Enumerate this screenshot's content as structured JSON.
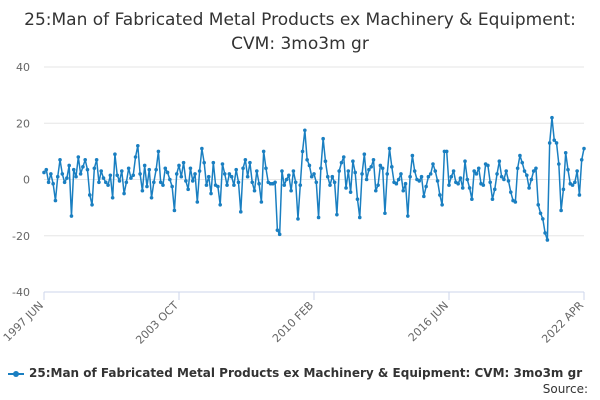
{
  "chart_data": {
    "type": "line",
    "title": "25:Man of Fabricated Metal Products ex Machinery & Equipment: CVM: 3mo3m gr",
    "xlabel": "",
    "ylabel": "",
    "x_tick_labels": [
      "1997 JUN",
      "2003 OCT",
      "2010 FEB",
      "2016 JUN",
      "2022 APR"
    ],
    "y_ticks": [
      40,
      20,
      0,
      -20,
      -40
    ],
    "ylim": [
      -40,
      40
    ],
    "xlim": [
      "1997 JUN",
      "2022 APR"
    ],
    "grid": "horizontal",
    "legend_position": "bottom-left",
    "color": "#1a7fc1",
    "series": [
      {
        "name": "25:Man of Fabricated Metal Products ex Machinery & Equipment: CVM: 3mo3m gr",
        "step": "3 months",
        "start": "1997 JUN",
        "values": [
          2.5,
          3.5,
          -1.0,
          2.0,
          -1.5,
          -7.5,
          1.0,
          7.0,
          2.0,
          -1.0,
          0.5,
          5.0,
          -13.0,
          3.5,
          1.0,
          8.0,
          2.0,
          4.5,
          7.0,
          3.5,
          -5.5,
          -9.0,
          4.0,
          7.0,
          -1.0,
          3.0,
          0.5,
          -1.0,
          -2.0,
          1.5,
          -6.5,
          9.0,
          1.5,
          -0.5,
          3.0,
          -5.0,
          -1.0,
          4.0,
          0.5,
          1.5,
          8.0,
          12.0,
          2.0,
          -4.0,
          5.0,
          -2.5,
          3.5,
          -6.5,
          -1.0,
          3.5,
          10.0,
          -1.0,
          -2.0,
          4.0,
          2.5,
          0.0,
          -2.5,
          -11.0,
          2.0,
          5.0,
          1.0,
          6.0,
          -0.5,
          -3.5,
          4.0,
          -0.5,
          2.0,
          -8.0,
          3.0,
          11.0,
          6.0,
          -2.0,
          1.0,
          -5.0,
          6.0,
          -2.0,
          -2.5,
          -9.0,
          5.5,
          2.0,
          -2.0,
          2.0,
          1.0,
          -2.0,
          3.5,
          -1.0,
          -11.5,
          4.0,
          7.0,
          1.0,
          6.0,
          -1.0,
          -4.0,
          3.0,
          -1.5,
          -8.0,
          10.0,
          4.0,
          -1.0,
          -1.5,
          -1.5,
          -1.0,
          -18.0,
          -19.5,
          3.0,
          -2.0,
          0.0,
          1.5,
          -4.0,
          3.0,
          -1.0,
          -14.0,
          -2.0,
          10.0,
          17.5,
          7.0,
          5.0,
          1.0,
          2.0,
          -1.0,
          -13.5,
          4.0,
          14.5,
          6.5,
          1.0,
          -2.0,
          1.0,
          -1.0,
          -12.5,
          3.0,
          6.0,
          8.0,
          -3.0,
          3.0,
          -4.5,
          6.5,
          2.5,
          -7.0,
          -13.5,
          2.0,
          9.0,
          0.0,
          3.5,
          4.5,
          7.0,
          -4.0,
          -2.0,
          5.0,
          4.0,
          -12.0,
          2.0,
          11.0,
          4.5,
          -1.0,
          -1.5,
          0.0,
          2.0,
          -4.0,
          -1.5,
          -13.0,
          1.0,
          8.5,
          3.0,
          0.0,
          -0.5,
          1.0,
          -6.0,
          -2.5,
          1.0,
          2.0,
          5.5,
          3.0,
          -0.5,
          -5.5,
          -9.0,
          10.0,
          10.0,
          -2.0,
          1.0,
          3.0,
          -1.0,
          -1.5,
          0.5,
          -3.0,
          6.5,
          0.0,
          -3.0,
          -7.0,
          3.0,
          2.0,
          4.0,
          -1.5,
          -2.0,
          5.5,
          5.0,
          -1.0,
          -7.0,
          -3.5,
          2.0,
          6.5,
          1.0,
          0.0,
          3.0,
          -0.5,
          -4.5,
          -7.5,
          -8.0,
          4.0,
          8.5,
          6.0,
          3.0,
          1.5,
          -3.0,
          0.0,
          3.0,
          4.0,
          -9.0,
          -12.0,
          -14.0,
          -19.0,
          -21.5,
          13.0,
          22.0,
          14.0,
          13.0,
          5.5,
          -11.0,
          -3.5,
          9.5,
          3.5,
          -1.5,
          -2.0,
          -1.0,
          3.0,
          -5.5,
          7.0,
          11.0
        ]
      }
    ]
  },
  "legend": {
    "label": "25:Man of Fabricated Metal Products ex Machinery & Equipment: CVM: 3mo3m gr"
  },
  "source": {
    "label": "Source:"
  }
}
